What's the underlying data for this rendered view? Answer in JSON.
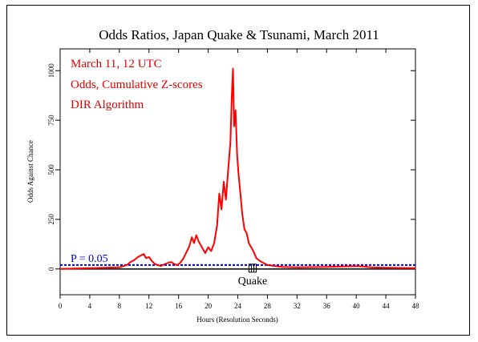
{
  "chart_data": {
    "type": "line",
    "title": "Odds Ratios, Japan Quake & Tsunami, March 2011",
    "xlabel": "Hours (Resolution Seconds)",
    "ylabel": "Odds Against Chance",
    "xlim": [
      0,
      48
    ],
    "ylim": [
      -130,
      1110
    ],
    "x_ticks": [
      0,
      4,
      8,
      12,
      16,
      20,
      24,
      28,
      32,
      36,
      40,
      44,
      48
    ],
    "y_ticks": [
      0,
      250,
      500,
      750,
      1000
    ],
    "grid": false,
    "annotations": [
      {
        "text": "March 11, 12 UTC",
        "color": "#e00000"
      },
      {
        "text": "Odds, Cumulative Z-scores",
        "color": "#e00000"
      },
      {
        "text": "DIR Algorithm",
        "color": "#e00000"
      }
    ],
    "threshold": {
      "label": "P = 0.05",
      "value": 20,
      "color": "#0000cc"
    },
    "event": {
      "label": "Quake",
      "x_hours": [
        25.5,
        26.5
      ]
    },
    "series": [
      {
        "color": "#ff0000",
        "x": [
          0,
          2,
          4,
          6,
          8,
          9,
          9.5,
          10,
          10.5,
          11,
          11.3,
          11.6,
          12,
          12.4,
          12.8,
          13.2,
          13.6,
          14,
          14.5,
          15,
          15.4,
          15.8,
          16.2,
          16.6,
          17,
          17.4,
          17.8,
          18.1,
          18.4,
          18.7,
          19,
          19.3,
          19.6,
          20,
          20.4,
          20.8,
          21.2,
          21.5,
          21.8,
          22.1,
          22.4,
          22.7,
          23,
          23.2,
          23.35,
          23.5,
          23.7,
          23.9,
          24.1,
          24.3,
          24.6,
          24.9,
          25.2,
          25.5,
          25.8,
          26.1,
          26.5,
          27,
          27.5,
          28,
          29,
          30,
          32,
          36,
          40,
          41,
          42,
          44,
          48
        ],
        "values": [
          0,
          2,
          4,
          6,
          8,
          20,
          35,
          45,
          60,
          70,
          75,
          55,
          60,
          40,
          25,
          20,
          15,
          22,
          30,
          35,
          25,
          20,
          30,
          50,
          80,
          110,
          160,
          130,
          170,
          140,
          120,
          100,
          80,
          110,
          90,
          130,
          220,
          380,
          300,
          440,
          350,
          500,
          640,
          880,
          1010,
          720,
          800,
          580,
          480,
          400,
          280,
          200,
          180,
          130,
          110,
          90,
          55,
          40,
          30,
          20,
          15,
          10,
          8,
          10,
          14,
          12,
          8,
          6,
          4
        ]
      }
    ]
  }
}
